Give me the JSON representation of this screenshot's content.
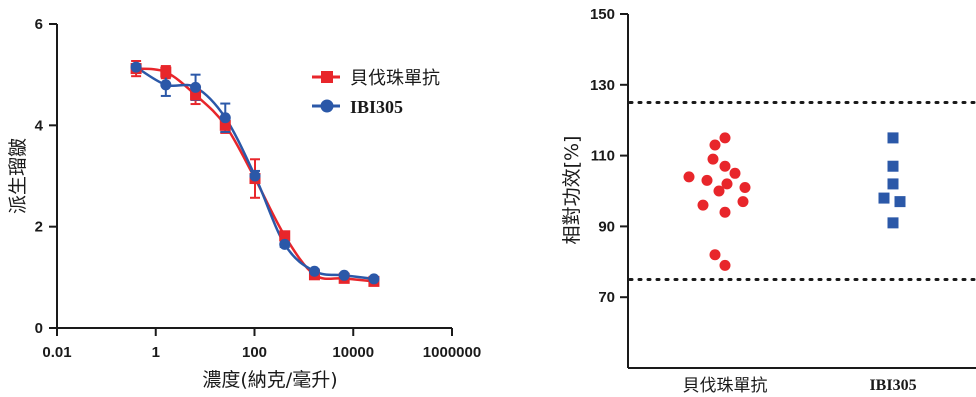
{
  "chart_data": [
    {
      "type": "line",
      "xlabel": "濃度(納克/毫升)",
      "ylabel": "派生瑠皺",
      "x_scale": "log10",
      "xlim": [
        0.01,
        1000000
      ],
      "ylim": [
        0,
        6
      ],
      "x_ticks": [
        "0.01",
        "1",
        "100",
        "10000",
        "1000000"
      ],
      "y_ticks": [
        "0",
        "2",
        "4",
        "6"
      ],
      "legend_position": "top-right",
      "series": [
        {
          "name": "貝伐珠單抗",
          "color": "#e8262b",
          "marker": "square",
          "x": [
            0.4,
            1.6,
            6.4,
            25.6,
            102.4,
            409.6,
            1638.4,
            6553.6,
            26214.4
          ],
          "y": [
            5.12,
            5.05,
            4.6,
            4.0,
            2.95,
            1.82,
            1.05,
            0.98,
            0.92
          ],
          "err": [
            0.15,
            0.12,
            0.18,
            0.15,
            0.38,
            0.06,
            0.05,
            0.04,
            0.05
          ]
        },
        {
          "name": "IBI305",
          "color": "#2b58a8",
          "marker": "circle",
          "x": [
            0.4,
            1.6,
            6.4,
            25.6,
            102.4,
            409.6,
            1638.4,
            6553.6,
            26214.4
          ],
          "y": [
            5.15,
            4.8,
            4.75,
            4.15,
            3.0,
            1.65,
            1.12,
            1.04,
            0.97
          ],
          "err": [
            0.06,
            0.22,
            0.25,
            0.28,
            0.1,
            0.05,
            0.04,
            0.03,
            0.03
          ]
        }
      ]
    },
    {
      "type": "scatter",
      "ylabel": "相對功效[%]",
      "ylim": [
        50,
        150
      ],
      "y_ticks": [
        "70",
        "90",
        "110",
        "130",
        "150"
      ],
      "categories": [
        "貝伐珠單抗",
        "IBI305"
      ],
      "reference_lines": [
        75,
        125
      ],
      "series": [
        {
          "name": "貝伐珠單抗",
          "color": "#e8262b",
          "marker": "circle",
          "values": [
            115,
            113,
            109,
            107,
            105,
            104,
            103,
            102,
            101,
            100,
            97,
            96,
            94,
            82,
            79
          ]
        },
        {
          "name": "IBI305",
          "color": "#2b58a8",
          "marker": "square",
          "values": [
            115,
            107,
            102,
            98,
            97,
            91
          ]
        }
      ]
    }
  ]
}
